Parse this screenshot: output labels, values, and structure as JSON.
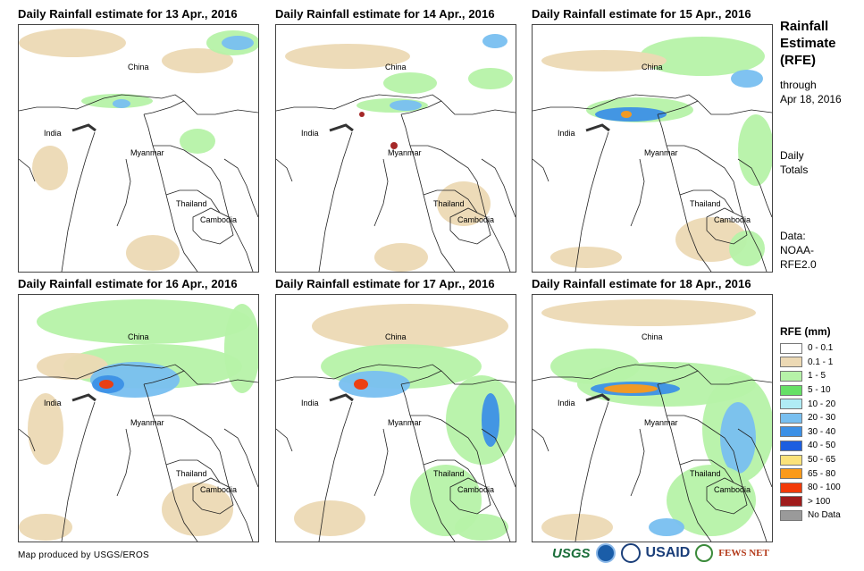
{
  "panels": [
    {
      "title": "Daily Rainfall estimate for 13 Apr., 2016"
    },
    {
      "title": "Daily Rainfall estimate for 14 Apr., 2016"
    },
    {
      "title": "Daily Rainfall estimate for 15 Apr., 2016"
    },
    {
      "title": "Daily Rainfall estimate for 16 Apr., 2016"
    },
    {
      "title": "Daily Rainfall estimate for 17 Apr., 2016"
    },
    {
      "title": "Daily Rainfall estimate for 18 Apr., 2016"
    }
  ],
  "map_labels": {
    "china": "China",
    "india": "India",
    "myanmar": "Myanmar",
    "thailand": "Thailand",
    "cambodia": "Cambodia"
  },
  "side": {
    "title_lines": [
      "Rainfall",
      "Estimate",
      "(RFE)"
    ],
    "through_lines": [
      "through",
      "Apr 18, 2016"
    ],
    "totals_lines": [
      "Daily",
      "Totals"
    ],
    "data_lines": [
      "Data:",
      "NOAA-",
      "RFE2.0"
    ]
  },
  "legend": {
    "title": "RFE (mm)",
    "items": [
      {
        "label": "0 - 0.1",
        "color": "#ffffff"
      },
      {
        "label": "0.1 - 1",
        "color": "#ecd9b4"
      },
      {
        "label": "1 - 5",
        "color": "#b6f2a8"
      },
      {
        "label": "5 - 10",
        "color": "#66e066"
      },
      {
        "label": "10 - 20",
        "color": "#b0ecf5"
      },
      {
        "label": "20 - 30",
        "color": "#78bff0"
      },
      {
        "label": "30 - 40",
        "color": "#3c90e6"
      },
      {
        "label": "40 - 50",
        "color": "#1c5ee0"
      },
      {
        "label": "50 - 65",
        "color": "#fbe27a"
      },
      {
        "label": "65 - 80",
        "color": "#fb9a1a"
      },
      {
        "label": "80 - 100",
        "color": "#f23a08"
      },
      {
        "label": "> 100",
        "color": "#a01c1c"
      },
      {
        "label": "No Data",
        "color": "#9a9a9a"
      }
    ]
  },
  "credit": "Map produced by USGS/EROS",
  "logos": {
    "usgs": "USGS",
    "usaid": "USAID",
    "fews": "FEWS NET"
  }
}
